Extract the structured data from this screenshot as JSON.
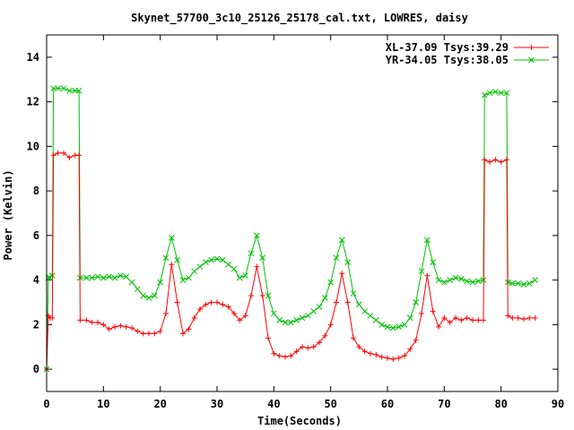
{
  "chart_data": {
    "type": "line",
    "title": "Skynet_57700_3c10_25126_25178_cal.txt, LOWRES, daisy",
    "xlabel": "Time(Seconds)",
    "ylabel": "Power (Kelvin)",
    "xlim": [
      0,
      90
    ],
    "ylim": [
      -1,
      15
    ],
    "x_ticks": [
      0,
      10,
      20,
      30,
      40,
      50,
      60,
      70,
      80,
      90
    ],
    "y_ticks": [
      0,
      2,
      4,
      6,
      8,
      10,
      12,
      14
    ],
    "x_tick_labels": [
      "0",
      "10",
      "20",
      "30",
      "40",
      "50",
      "60",
      "70",
      "80",
      "90"
    ],
    "y_tick_labels": [
      "0",
      "2",
      "4",
      "6",
      "8",
      "10",
      "12",
      "14"
    ],
    "legend_position": "top-right",
    "grid": false,
    "series": [
      {
        "name": "XL-37.09 Tsys:39.29",
        "color": "#ff0000",
        "marker": "plus",
        "points": [
          [
            0,
            0
          ],
          [
            0.3,
            2.4
          ],
          [
            0.6,
            2.3
          ],
          [
            1,
            2.3
          ],
          [
            1.2,
            9.6
          ],
          [
            2,
            9.7
          ],
          [
            3,
            9.7
          ],
          [
            4,
            9.5
          ],
          [
            5,
            9.6
          ],
          [
            5.7,
            9.6
          ],
          [
            5.9,
            2.2
          ],
          [
            7,
            2.2
          ],
          [
            8,
            2.1
          ],
          [
            9,
            2.1
          ],
          [
            10,
            2.0
          ],
          [
            11,
            1.8
          ],
          [
            12,
            1.9
          ],
          [
            13,
            1.95
          ],
          [
            14,
            1.9
          ],
          [
            15,
            1.85
          ],
          [
            16,
            1.7
          ],
          [
            17,
            1.6
          ],
          [
            18,
            1.6
          ],
          [
            19,
            1.6
          ],
          [
            20,
            1.7
          ],
          [
            21,
            2.5
          ],
          [
            22,
            4.7
          ],
          [
            23,
            3.0
          ],
          [
            24,
            1.6
          ],
          [
            25,
            1.8
          ],
          [
            26,
            2.3
          ],
          [
            27,
            2.7
          ],
          [
            28,
            2.9
          ],
          [
            29,
            3.0
          ],
          [
            30,
            3.0
          ],
          [
            31,
            2.9
          ],
          [
            32,
            2.8
          ],
          [
            33,
            2.5
          ],
          [
            34,
            2.2
          ],
          [
            35,
            2.4
          ],
          [
            36,
            3.3
          ],
          [
            37,
            4.6
          ],
          [
            38,
            3.3
          ],
          [
            39,
            1.4
          ],
          [
            40,
            0.7
          ],
          [
            41,
            0.6
          ],
          [
            42,
            0.55
          ],
          [
            43,
            0.6
          ],
          [
            44,
            0.8
          ],
          [
            45,
            1.0
          ],
          [
            46,
            0.95
          ],
          [
            47,
            1.0
          ],
          [
            48,
            1.2
          ],
          [
            49,
            1.5
          ],
          [
            50,
            2.0
          ],
          [
            51,
            3.0
          ],
          [
            52,
            4.3
          ],
          [
            53,
            3.0
          ],
          [
            54,
            1.4
          ],
          [
            55,
            1.0
          ],
          [
            56,
            0.8
          ],
          [
            57,
            0.7
          ],
          [
            58,
            0.65
          ],
          [
            59,
            0.55
          ],
          [
            60,
            0.5
          ],
          [
            61,
            0.45
          ],
          [
            62,
            0.5
          ],
          [
            63,
            0.6
          ],
          [
            64,
            0.9
          ],
          [
            65,
            1.3
          ],
          [
            66,
            2.5
          ],
          [
            67,
            4.2
          ],
          [
            68,
            2.6
          ],
          [
            69,
            1.9
          ],
          [
            70,
            2.3
          ],
          [
            71,
            2.1
          ],
          [
            72,
            2.3
          ],
          [
            73,
            2.2
          ],
          [
            74,
            2.3
          ],
          [
            75,
            2.2
          ],
          [
            76,
            2.2
          ],
          [
            76.9,
            2.2
          ],
          [
            77.1,
            9.4
          ],
          [
            78,
            9.3
          ],
          [
            79,
            9.4
          ],
          [
            80,
            9.3
          ],
          [
            81,
            9.4
          ],
          [
            81.2,
            2.4
          ],
          [
            82,
            2.3
          ],
          [
            83,
            2.3
          ],
          [
            84,
            2.25
          ],
          [
            85,
            2.3
          ],
          [
            86,
            2.3
          ]
        ]
      },
      {
        "name": "YR-34.05 Tsys:38.05",
        "color": "#00c000",
        "marker": "cross",
        "points": [
          [
            0,
            0
          ],
          [
            0.3,
            4.1
          ],
          [
            0.6,
            4.1
          ],
          [
            1,
            4.2
          ],
          [
            1.2,
            12.6
          ],
          [
            2,
            12.6
          ],
          [
            3,
            12.6
          ],
          [
            4,
            12.5
          ],
          [
            5,
            12.5
          ],
          [
            5.7,
            12.5
          ],
          [
            5.9,
            4.1
          ],
          [
            7,
            4.1
          ],
          [
            8,
            4.1
          ],
          [
            9,
            4.15
          ],
          [
            10,
            4.1
          ],
          [
            11,
            4.15
          ],
          [
            12,
            4.1
          ],
          [
            13,
            4.2
          ],
          [
            14,
            4.15
          ],
          [
            15,
            3.9
          ],
          [
            16,
            3.6
          ],
          [
            17,
            3.3
          ],
          [
            18,
            3.2
          ],
          [
            19,
            3.3
          ],
          [
            20,
            3.9
          ],
          [
            21,
            5.0
          ],
          [
            22,
            5.9
          ],
          [
            23,
            4.9
          ],
          [
            24,
            4.0
          ],
          [
            25,
            4.1
          ],
          [
            26,
            4.4
          ],
          [
            27,
            4.6
          ],
          [
            28,
            4.8
          ],
          [
            29,
            4.9
          ],
          [
            30,
            4.95
          ],
          [
            31,
            4.9
          ],
          [
            32,
            4.7
          ],
          [
            33,
            4.5
          ],
          [
            34,
            4.1
          ],
          [
            35,
            4.2
          ],
          [
            36,
            5.2
          ],
          [
            37,
            6.0
          ],
          [
            38,
            5.0
          ],
          [
            39,
            3.3
          ],
          [
            40,
            2.5
          ],
          [
            41,
            2.2
          ],
          [
            42,
            2.1
          ],
          [
            43,
            2.1
          ],
          [
            44,
            2.2
          ],
          [
            45,
            2.3
          ],
          [
            46,
            2.4
          ],
          [
            47,
            2.6
          ],
          [
            48,
            2.8
          ],
          [
            49,
            3.2
          ],
          [
            50,
            3.9
          ],
          [
            51,
            5.0
          ],
          [
            52,
            5.8
          ],
          [
            53,
            4.8
          ],
          [
            54,
            3.4
          ],
          [
            55,
            2.9
          ],
          [
            56,
            2.6
          ],
          [
            57,
            2.4
          ],
          [
            58,
            2.2
          ],
          [
            59,
            2.0
          ],
          [
            60,
            1.9
          ],
          [
            61,
            1.85
          ],
          [
            62,
            1.9
          ],
          [
            63,
            2.0
          ],
          [
            64,
            2.3
          ],
          [
            65,
            3.0
          ],
          [
            66,
            4.4
          ],
          [
            67,
            5.8
          ],
          [
            68,
            4.8
          ],
          [
            69,
            4.0
          ],
          [
            70,
            3.9
          ],
          [
            71,
            4.0
          ],
          [
            72,
            4.1
          ],
          [
            73,
            4.05
          ],
          [
            74,
            3.95
          ],
          [
            75,
            3.9
          ],
          [
            76,
            3.95
          ],
          [
            76.9,
            4.0
          ],
          [
            77.1,
            12.3
          ],
          [
            78,
            12.4
          ],
          [
            79,
            12.45
          ],
          [
            80,
            12.4
          ],
          [
            81,
            12.4
          ],
          [
            81.2,
            3.9
          ],
          [
            82,
            3.85
          ],
          [
            83,
            3.85
          ],
          [
            84,
            3.8
          ],
          [
            85,
            3.85
          ],
          [
            86,
            4.0
          ]
        ]
      }
    ]
  }
}
